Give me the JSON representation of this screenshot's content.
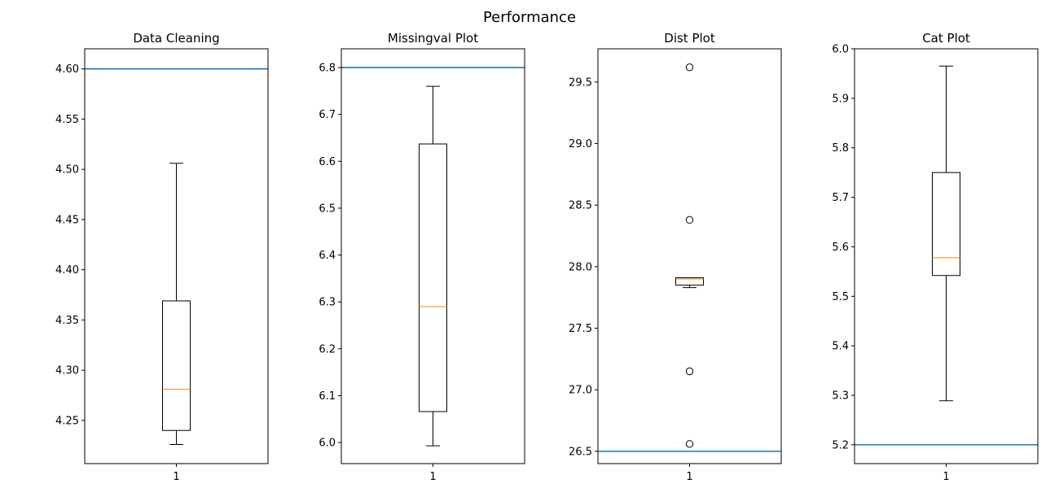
{
  "figure": {
    "title": "Performance"
  },
  "colors": {
    "box": "#000000",
    "median": "#ff7f0e",
    "reference_line": "#1f77b4",
    "background": "#ffffff"
  },
  "chart_data": [
    {
      "type": "box",
      "title": "Data Cleaning",
      "categories": [
        "1"
      ],
      "ylim": [
        4.207,
        4.62
      ],
      "yticks": [
        4.25,
        4.3,
        4.35,
        4.4,
        4.45,
        4.5,
        4.55,
        4.6
      ],
      "ytick_labels": [
        "4.25",
        "4.30",
        "4.35",
        "4.40",
        "4.45",
        "4.50",
        "4.55",
        "4.60"
      ],
      "box": {
        "whisker_low": 4.226,
        "q1": 4.24,
        "median": 4.281,
        "q3": 4.369,
        "whisker_high": 4.506
      },
      "outliers": [],
      "reference_line": 4.6
    },
    {
      "type": "box",
      "title": "Missingval Plot",
      "categories": [
        "1"
      ],
      "ylim": [
        5.955,
        6.84
      ],
      "yticks": [
        6.0,
        6.1,
        6.2,
        6.3,
        6.4,
        6.5,
        6.6,
        6.7,
        6.8
      ],
      "ytick_labels": [
        "6.0",
        "6.1",
        "6.2",
        "6.3",
        "6.4",
        "6.5",
        "6.6",
        "6.7",
        "6.8"
      ],
      "box": {
        "whisker_low": 5.993,
        "q1": 6.066,
        "median": 6.29,
        "q3": 6.637,
        "whisker_high": 6.76
      },
      "outliers": [],
      "reference_line": 6.8
    },
    {
      "type": "box",
      "title": "Dist Plot",
      "categories": [
        "1"
      ],
      "ylim": [
        26.4,
        29.77
      ],
      "yticks": [
        26.5,
        27.0,
        27.5,
        28.0,
        28.5,
        29.0,
        29.5
      ],
      "ytick_labels": [
        "26.5",
        "27.0",
        "27.5",
        "28.0",
        "28.5",
        "29.0",
        "29.5"
      ],
      "box": {
        "whisker_low": 27.83,
        "q1": 27.85,
        "median": 27.9,
        "q3": 27.91,
        "whisker_high": 27.91
      },
      "outliers": [
        29.62,
        28.38,
        27.15,
        26.56
      ],
      "reference_line": 26.5
    },
    {
      "type": "box",
      "title": "Cat Plot",
      "categories": [
        "1"
      ],
      "ylim": [
        5.162,
        6.0
      ],
      "yticks": [
        5.2,
        5.3,
        5.4,
        5.5,
        5.6,
        5.7,
        5.8,
        5.9,
        6.0
      ],
      "ytick_labels": [
        "5.2",
        "5.3",
        "5.4",
        "5.5",
        "5.6",
        "5.7",
        "5.8",
        "5.9",
        "6.0"
      ],
      "box": {
        "whisker_low": 5.289,
        "q1": 5.542,
        "median": 5.578,
        "q3": 5.75,
        "whisker_high": 5.965
      },
      "outliers": [],
      "reference_line": 5.2
    }
  ]
}
